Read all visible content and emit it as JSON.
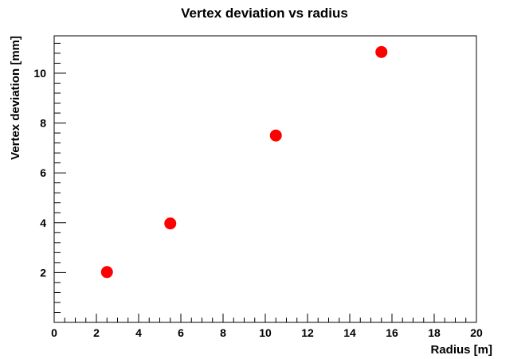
{
  "chart_data": {
    "type": "scatter",
    "title": "Vertex deviation vs radius",
    "xlabel": "Radius [m]",
    "ylabel": "Vertex deviation [mm]",
    "xlim": [
      0,
      20
    ],
    "ylim": [
      0,
      11.5
    ],
    "x_ticks": [
      "0",
      "2",
      "4",
      "6",
      "8",
      "10",
      "12",
      "14",
      "16",
      "18",
      "20"
    ],
    "y_ticks": [
      "2",
      "4",
      "6",
      "8",
      "10"
    ],
    "grid": false,
    "legend": "none",
    "marker_color": "#ff0000",
    "series": [
      {
        "points": [
          {
            "x": 2.5,
            "y": 2.02
          },
          {
            "x": 5.5,
            "y": 3.97
          },
          {
            "x": 10.5,
            "y": 7.5
          },
          {
            "x": 15.5,
            "y": 10.85
          }
        ]
      }
    ]
  }
}
